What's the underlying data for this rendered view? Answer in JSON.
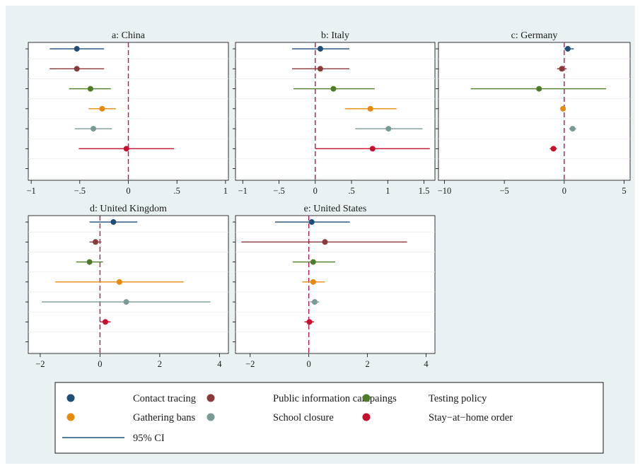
{
  "chart_data": {
    "type": "scatter",
    "description_style": "coefficient plot with 95% confidence intervals",
    "series": [
      {
        "name": "Contact tracing",
        "color": "#1f4e79"
      },
      {
        "name": "Public information campaings",
        "color": "#8b3a3a"
      },
      {
        "name": "Testing policy",
        "color": "#4f7a28"
      },
      {
        "name": "Gathering bans",
        "color": "#e8890c"
      },
      {
        "name": "School closure",
        "color": "#7a9a96"
      },
      {
        "name": "Stay−at−home order",
        "color": "#c8102e"
      }
    ],
    "ci_label": "95% CI",
    "ci_color": "#1f4e79",
    "reference_line_color": "#b0195a",
    "panels": [
      {
        "title": "a: China",
        "xlim": [
          -1.03,
          1.03
        ],
        "ticks": [
          -1,
          -0.5,
          0,
          0.5,
          1
        ],
        "tick_labels": [
          "−1",
          "−.5",
          "0",
          ".5",
          "1"
        ],
        "points": [
          {
            "est": -0.53,
            "lo": -0.81,
            "hi": -0.25
          },
          {
            "est": -0.53,
            "lo": -0.81,
            "hi": -0.25
          },
          {
            "est": -0.39,
            "lo": -0.61,
            "hi": -0.18
          },
          {
            "est": -0.27,
            "lo": -0.41,
            "hi": -0.13
          },
          {
            "est": -0.36,
            "lo": -0.55,
            "hi": -0.17
          },
          {
            "est": -0.02,
            "lo": -0.51,
            "hi": 0.47
          }
        ]
      },
      {
        "title": "b: Italy",
        "xlim": [
          -1.1,
          1.65
        ],
        "ticks": [
          -1,
          -0.5,
          0,
          0.5,
          1,
          1.5
        ],
        "tick_labels": [
          "−1",
          "−.5",
          "0",
          ".5",
          "1",
          "1.5"
        ],
        "points": [
          {
            "est": 0.07,
            "lo": -0.32,
            "hi": 0.47
          },
          {
            "est": 0.07,
            "lo": -0.32,
            "hi": 0.47
          },
          {
            "est": 0.25,
            "lo": -0.3,
            "hi": 0.82
          },
          {
            "est": 0.76,
            "lo": 0.41,
            "hi": 1.12
          },
          {
            "est": 1.01,
            "lo": 0.55,
            "hi": 1.48
          },
          {
            "est": 0.79,
            "lo": 0.0,
            "hi": 1.58
          }
        ]
      },
      {
        "title": "c: Germany",
        "xlim": [
          -10.5,
          5.5
        ],
        "ticks": [
          -10,
          -5,
          0,
          5
        ],
        "tick_labels": [
          "−10",
          "−5",
          "0",
          "5"
        ],
        "points": [
          {
            "est": 0.3,
            "lo": 0.0,
            "hi": 0.8
          },
          {
            "est": -0.2,
            "lo": -0.6,
            "hi": 0.2
          },
          {
            "est": -2.1,
            "lo": -7.8,
            "hi": 3.5
          },
          {
            "est": -0.1,
            "lo": -0.3,
            "hi": 0.1
          },
          {
            "est": 0.7,
            "lo": 0.4,
            "hi": 1.0
          },
          {
            "est": -0.9,
            "lo": -1.2,
            "hi": -0.6
          }
        ]
      },
      {
        "title": "d: United Kingdom",
        "xlim": [
          -2.4,
          4.3
        ],
        "ticks": [
          -2,
          0,
          2,
          4
        ],
        "tick_labels": [
          "−2",
          "0",
          "2",
          "4"
        ],
        "points": [
          {
            "est": 0.45,
            "lo": -0.35,
            "hi": 1.25
          },
          {
            "est": -0.15,
            "lo": -0.35,
            "hi": 0.05
          },
          {
            "est": -0.35,
            "lo": -0.8,
            "hi": 0.1
          },
          {
            "est": 0.65,
            "lo": -1.5,
            "hi": 2.8
          },
          {
            "est": 0.88,
            "lo": -1.95,
            "hi": 3.7
          },
          {
            "est": 0.18,
            "lo": 0.0,
            "hi": 0.36
          }
        ]
      },
      {
        "title": "e: United States",
        "xlim": [
          -2.5,
          4.3
        ],
        "ticks": [
          -2,
          0,
          2,
          4
        ],
        "tick_labels": [
          "−2",
          "0",
          "2",
          "4"
        ],
        "points": [
          {
            "est": 0.1,
            "lo": -1.15,
            "hi": 1.4
          },
          {
            "est": 0.55,
            "lo": -2.3,
            "hi": 3.35
          },
          {
            "est": 0.15,
            "lo": -0.55,
            "hi": 0.9
          },
          {
            "est": 0.15,
            "lo": -0.22,
            "hi": 0.55
          },
          {
            "est": 0.2,
            "lo": 0.05,
            "hi": 0.35
          },
          {
            "est": 0.02,
            "lo": -0.15,
            "hi": 0.18
          }
        ]
      }
    ]
  }
}
